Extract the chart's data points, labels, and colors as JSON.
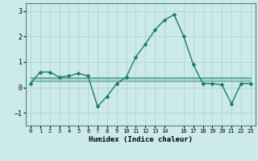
{
  "xlabel": "Humidex (Indice chaleur)",
  "background_color": "#cceaea",
  "line_color": "#1a7a6e",
  "grid_color": "#aacfcf",
  "xlim": [
    -0.5,
    23.5
  ],
  "ylim": [
    -1.5,
    3.3
  ],
  "yticks": [
    -1,
    0,
    1,
    2,
    3
  ],
  "xtick_positions": [
    0,
    1,
    2,
    3,
    4,
    5,
    6,
    7,
    8,
    9,
    10,
    11,
    12,
    13,
    14,
    16,
    17,
    18,
    19,
    20,
    21,
    22,
    23
  ],
  "xtick_labels": [
    "0",
    "1",
    "2",
    "3",
    "4",
    "5",
    "6",
    "7",
    "8",
    "9",
    "10",
    "11",
    "12",
    "13",
    "14",
    "16",
    "17",
    "18",
    "19",
    "20",
    "21",
    "22",
    "23"
  ],
  "series": [
    [
      0,
      0.15
    ],
    [
      1,
      0.6
    ],
    [
      2,
      0.6
    ],
    [
      3,
      0.4
    ],
    [
      4,
      0.45
    ],
    [
      5,
      0.55
    ],
    [
      6,
      0.45
    ],
    [
      7,
      -0.75
    ],
    [
      8,
      -0.35
    ],
    [
      9,
      0.15
    ],
    [
      10,
      0.4
    ],
    [
      11,
      1.2
    ],
    [
      12,
      1.7
    ],
    [
      13,
      2.25
    ],
    [
      14,
      2.65
    ],
    [
      15,
      2.85
    ],
    [
      16,
      2.0
    ],
    [
      17,
      0.9
    ],
    [
      18,
      0.15
    ],
    [
      19,
      0.15
    ],
    [
      20,
      0.1
    ],
    [
      21,
      -0.65
    ],
    [
      22,
      0.15
    ],
    [
      23,
      0.15
    ]
  ],
  "flat_series": [
    {
      "start": 0,
      "end": 23,
      "value": 0.4
    },
    {
      "start": 0,
      "end": 23,
      "value": 0.35
    },
    {
      "start": 0,
      "end": 23,
      "value": 0.3
    },
    {
      "start": 0,
      "end": 23,
      "value": 0.25
    }
  ],
  "marker_size": 2.5,
  "line_width": 1.0,
  "font_size_ticks": 5,
  "font_size_xlabel": 6.5
}
